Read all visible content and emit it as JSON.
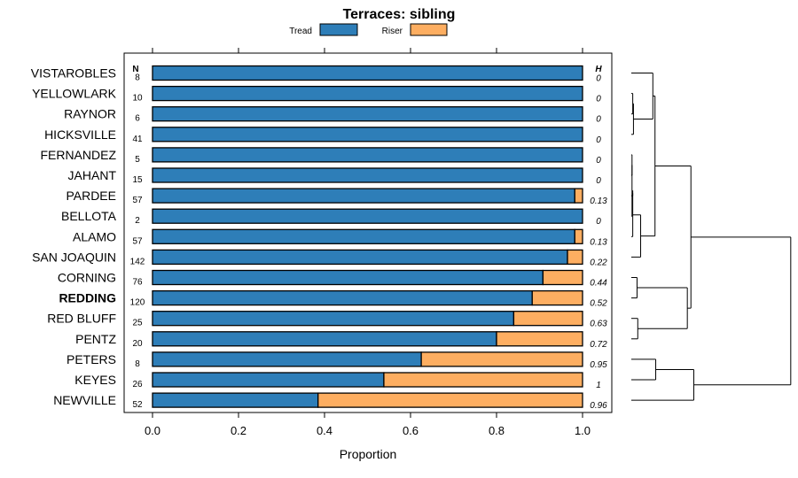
{
  "chart_data": {
    "type": "bar",
    "stacked": true,
    "orientation": "horizontal",
    "title": "Terraces: sibling",
    "xlabel": "Proportion",
    "xlim": [
      0,
      1
    ],
    "xticks": [
      0,
      0.2,
      0.4,
      0.6,
      0.8,
      1
    ],
    "xtick_labels": [
      "0.0",
      "0.2",
      "0.4",
      "0.6",
      "0.8",
      "1.0"
    ],
    "n_header": "N",
    "h_header": "H",
    "legend_position": "top",
    "series": [
      {
        "name": "Tread",
        "color": "#2e7eb8"
      },
      {
        "name": "Riser",
        "color": "#fdae61"
      }
    ],
    "highlight": "REDDING",
    "categories": [
      "VISTAROBLES",
      "YELLOWLARK",
      "RAYNOR",
      "HICKSVILLE",
      "FERNANDEZ",
      "JAHANT",
      "PARDEE",
      "BELLOTA",
      "ALAMO",
      "SAN JOAQUIN",
      "CORNING",
      "REDDING",
      "RED BLUFF",
      "PENTZ",
      "PETERS",
      "KEYES",
      "NEWVILLE"
    ],
    "tread": [
      1.0,
      1.0,
      1.0,
      1.0,
      1.0,
      1.0,
      0.982,
      1.0,
      0.982,
      0.965,
      0.908,
      0.883,
      0.84,
      0.8,
      0.625,
      0.538,
      0.385
    ],
    "riser": [
      0.0,
      0.0,
      0.0,
      0.0,
      0.0,
      0.0,
      0.018,
      0.0,
      0.018,
      0.035,
      0.092,
      0.117,
      0.16,
      0.2,
      0.375,
      0.462,
      0.615
    ],
    "n": [
      "8",
      "10",
      "6",
      "41",
      "5",
      "15",
      "57",
      "2",
      "57",
      "142",
      "76",
      "120",
      "25",
      "20",
      "8",
      "26",
      "52"
    ],
    "h": [
      "0",
      "0",
      "0",
      "0",
      "0",
      "0",
      "0.13",
      "0",
      "0.13",
      "0.22",
      "0.44",
      "0.52",
      "0.63",
      "0.72",
      "0.95",
      "1",
      "0.96"
    ],
    "dendrogram": {
      "leaf_order": [
        "VISTAROBLES",
        "YELLOWLARK",
        "RAYNOR",
        "HICKSVILLE",
        "FERNANDEZ",
        "JAHANT",
        "PARDEE",
        "BELLOTA",
        "ALAMO",
        "SAN JOAQUIN",
        "CORNING",
        "REDDING",
        "RED BLUFF",
        "PENTZ",
        "PETERS",
        "KEYES",
        "NEWVILLE"
      ],
      "merges": [
        {
          "a": "L1",
          "b": "L2",
          "height": 0.02
        },
        {
          "a": "M0",
          "b": "L3",
          "height": 0.03
        },
        {
          "a": "M1",
          "b": "L0",
          "height": 0.3
        },
        {
          "a": "L4",
          "b": "L5",
          "height": 0.01
        },
        {
          "a": "M3",
          "b": "L7",
          "height": 0.01
        },
        {
          "a": "M4",
          "b": "L6",
          "height": 0.02
        },
        {
          "a": "M5",
          "b": "L8",
          "height": 0.02
        },
        {
          "a": "M6",
          "b": "L9",
          "height": 0.13
        },
        {
          "a": "M2",
          "b": "M7",
          "height": 0.33
        },
        {
          "a": "L10",
          "b": "L11",
          "height": 0.08
        },
        {
          "a": "L12",
          "b": "L13",
          "height": 0.09
        },
        {
          "a": "M9",
          "b": "M10",
          "height": 0.78
        },
        {
          "a": "M8",
          "b": "M11",
          "height": 0.83
        },
        {
          "a": "L14",
          "b": "L15",
          "height": 0.34
        },
        {
          "a": "M13",
          "b": "L16",
          "height": 0.87
        },
        {
          "a": "M12",
          "b": "M14",
          "height": 2.22
        }
      ]
    }
  }
}
